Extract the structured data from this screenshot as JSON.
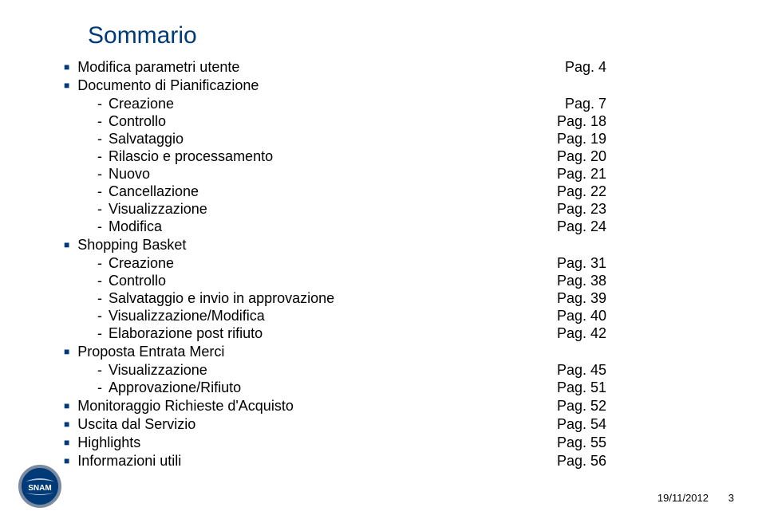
{
  "title": "Sommario",
  "bullet_color": "#003a77",
  "title_color": "#003a77",
  "sections": [
    {
      "type": "section",
      "label": "Modifica parametri utente",
      "page": "Pag. 4"
    },
    {
      "type": "section",
      "label": "Documento di Pianificazione",
      "page": ""
    },
    {
      "type": "sub",
      "label": "Creazione",
      "page": "Pag. 7"
    },
    {
      "type": "sub",
      "label": "Controllo",
      "page": "Pag. 18"
    },
    {
      "type": "sub",
      "label": "Salvataggio",
      "page": "Pag. 19"
    },
    {
      "type": "sub",
      "label": "Rilascio e processamento",
      "page": "Pag. 20"
    },
    {
      "type": "sub",
      "label": "Nuovo",
      "page": "Pag. 21"
    },
    {
      "type": "sub",
      "label": "Cancellazione",
      "page": "Pag. 22"
    },
    {
      "type": "sub",
      "label": "Visualizzazione",
      "page": "Pag. 23"
    },
    {
      "type": "sub",
      "label": "Modifica",
      "page": "Pag. 24"
    },
    {
      "type": "section",
      "label": "Shopping Basket",
      "page": ""
    },
    {
      "type": "sub",
      "label": "Creazione",
      "page": "Pag. 31"
    },
    {
      "type": "sub",
      "label": "Controllo",
      "page": "Pag. 38"
    },
    {
      "type": "sub",
      "label": "Salvataggio e invio in approvazione",
      "page": "Pag. 39"
    },
    {
      "type": "sub",
      "label": "Visualizzazione/Modifica",
      "page": "Pag. 40"
    },
    {
      "type": "sub",
      "label": "Elaborazione post rifiuto",
      "page": "Pag. 42"
    },
    {
      "type": "section",
      "label": "Proposta Entrata Merci",
      "page": ""
    },
    {
      "type": "sub",
      "label": "Visualizzazione",
      "page": "Pag. 45"
    },
    {
      "type": "sub",
      "label": "Approvazione/Rifiuto",
      "page": "Pag. 51"
    },
    {
      "type": "section",
      "label": "Monitoraggio Richieste d'Acquisto",
      "page": "Pag. 52"
    },
    {
      "type": "section",
      "label": "Uscita dal Servizio",
      "page": "Pag. 54"
    },
    {
      "type": "section",
      "label": "Highlights",
      "page": "Pag. 55"
    },
    {
      "type": "section",
      "label": "Informazioni utili",
      "page": "Pag. 56"
    }
  ],
  "footer": {
    "date": "19/11/2012",
    "page_num": "3"
  },
  "logo": {
    "circle_fill": "#003a77",
    "border": "#7a8aa0",
    "text": "SNAM",
    "text_color": "#ffffff"
  }
}
